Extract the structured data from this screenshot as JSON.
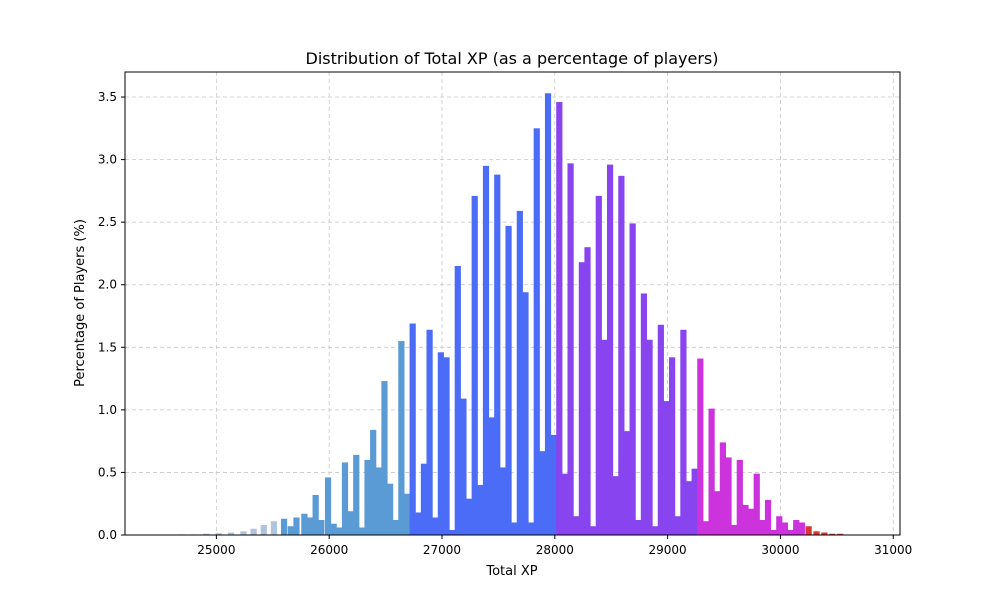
{
  "chart_data": {
    "type": "bar",
    "title": "Distribution of Total XP (as a percentage of players)",
    "xlabel": "Total XP",
    "ylabel": "Percentage of Players (%)",
    "xlim": [
      24190,
      31060
    ],
    "ylim": [
      0,
      3.7
    ],
    "xticks": [
      25000,
      26000,
      27000,
      28000,
      29000,
      30000,
      31000
    ],
    "yticks": [
      0.0,
      0.5,
      1.0,
      1.5,
      2.0,
      2.5,
      3.0,
      3.5
    ],
    "grid": true,
    "bin_width": 55,
    "colors": {
      "lightsteel": "#b0c4de",
      "steelblue": "#5b9bd5",
      "royalblue": "#4a6cf7",
      "violet": "#8844ee",
      "magenta": "#cc33dd",
      "red": "#dd3333"
    },
    "bars": [
      {
        "x": 24690,
        "y": 0.005,
        "color": "#b0c4de"
      },
      {
        "x": 24800,
        "y": 0.005,
        "color": "#b0c4de"
      },
      {
        "x": 24910,
        "y": 0.01,
        "color": "#b0c4de"
      },
      {
        "x": 25020,
        "y": 0.015,
        "color": "#b0c4de"
      },
      {
        "x": 25130,
        "y": 0.02,
        "color": "#b0c4de"
      },
      {
        "x": 25240,
        "y": 0.03,
        "color": "#b0c4de"
      },
      {
        "x": 25330,
        "y": 0.05,
        "color": "#b0c4de"
      },
      {
        "x": 25420,
        "y": 0.08,
        "color": "#b0c4de"
      },
      {
        "x": 25510,
        "y": 0.11,
        "color": "#b0c4de"
      },
      {
        "x": 25600,
        "y": 0.13,
        "color": "#5b9bd5"
      },
      {
        "x": 25660,
        "y": 0.07,
        "color": "#5b9bd5"
      },
      {
        "x": 25710,
        "y": 0.14,
        "color": "#5b9bd5"
      },
      {
        "x": 25780,
        "y": 0.17,
        "color": "#5b9bd5"
      },
      {
        "x": 25830,
        "y": 0.14,
        "color": "#5b9bd5"
      },
      {
        "x": 25880,
        "y": 0.32,
        "color": "#5b9bd5"
      },
      {
        "x": 25930,
        "y": 0.12,
        "color": "#5b9bd5"
      },
      {
        "x": 25990,
        "y": 0.46,
        "color": "#5b9bd5"
      },
      {
        "x": 26040,
        "y": 0.09,
        "color": "#5b9bd5"
      },
      {
        "x": 26090,
        "y": 0.06,
        "color": "#5b9bd5"
      },
      {
        "x": 26140,
        "y": 0.58,
        "color": "#5b9bd5"
      },
      {
        "x": 26190,
        "y": 0.19,
        "color": "#5b9bd5"
      },
      {
        "x": 26240,
        "y": 0.64,
        "color": "#5b9bd5"
      },
      {
        "x": 26290,
        "y": 0.06,
        "color": "#5b9bd5"
      },
      {
        "x": 26340,
        "y": 0.6,
        "color": "#5b9bd5"
      },
      {
        "x": 26390,
        "y": 0.84,
        "color": "#5b9bd5"
      },
      {
        "x": 26440,
        "y": 0.54,
        "color": "#5b9bd5"
      },
      {
        "x": 26490,
        "y": 1.23,
        "color": "#5b9bd5"
      },
      {
        "x": 26540,
        "y": 0.41,
        "color": "#5b9bd5"
      },
      {
        "x": 26590,
        "y": 0.12,
        "color": "#5b9bd5"
      },
      {
        "x": 26640,
        "y": 1.55,
        "color": "#5b9bd5"
      },
      {
        "x": 26690,
        "y": 0.33,
        "color": "#5b9bd5"
      },
      {
        "x": 26740,
        "y": 1.69,
        "color": "#4a6cf7"
      },
      {
        "x": 26790,
        "y": 0.18,
        "color": "#4a6cf7"
      },
      {
        "x": 26840,
        "y": 0.57,
        "color": "#4a6cf7"
      },
      {
        "x": 26890,
        "y": 1.64,
        "color": "#4a6cf7"
      },
      {
        "x": 26940,
        "y": 0.14,
        "color": "#4a6cf7"
      },
      {
        "x": 26990,
        "y": 1.46,
        "color": "#4a6cf7"
      },
      {
        "x": 27040,
        "y": 1.42,
        "color": "#4a6cf7"
      },
      {
        "x": 27090,
        "y": 0.04,
        "color": "#4a6cf7"
      },
      {
        "x": 27140,
        "y": 2.15,
        "color": "#4a6cf7"
      },
      {
        "x": 27190,
        "y": 1.09,
        "color": "#4a6cf7"
      },
      {
        "x": 27240,
        "y": 0.29,
        "color": "#4a6cf7"
      },
      {
        "x": 27290,
        "y": 2.71,
        "color": "#4a6cf7"
      },
      {
        "x": 27340,
        "y": 0.4,
        "color": "#4a6cf7"
      },
      {
        "x": 27390,
        "y": 2.95,
        "color": "#4a6cf7"
      },
      {
        "x": 27440,
        "y": 0.94,
        "color": "#4a6cf7"
      },
      {
        "x": 27490,
        "y": 2.88,
        "color": "#4a6cf7"
      },
      {
        "x": 27540,
        "y": 0.54,
        "color": "#4a6cf7"
      },
      {
        "x": 27590,
        "y": 2.47,
        "color": "#4a6cf7"
      },
      {
        "x": 27640,
        "y": 0.1,
        "color": "#4a6cf7"
      },
      {
        "x": 27690,
        "y": 2.59,
        "color": "#4a6cf7"
      },
      {
        "x": 27740,
        "y": 1.94,
        "color": "#4a6cf7"
      },
      {
        "x": 27790,
        "y": 0.1,
        "color": "#4a6cf7"
      },
      {
        "x": 27840,
        "y": 3.25,
        "color": "#4a6cf7"
      },
      {
        "x": 27890,
        "y": 0.67,
        "color": "#4a6cf7"
      },
      {
        "x": 27940,
        "y": 3.53,
        "color": "#4a6cf7"
      },
      {
        "x": 27990,
        "y": 0.8,
        "color": "#4a6cf7"
      },
      {
        "x": 28040,
        "y": 3.46,
        "color": "#8844ee"
      },
      {
        "x": 28090,
        "y": 0.49,
        "color": "#8844ee"
      },
      {
        "x": 28140,
        "y": 2.97,
        "color": "#8844ee"
      },
      {
        "x": 28190,
        "y": 0.15,
        "color": "#8844ee"
      },
      {
        "x": 28240,
        "y": 2.18,
        "color": "#8844ee"
      },
      {
        "x": 28290,
        "y": 2.3,
        "color": "#8844ee"
      },
      {
        "x": 28340,
        "y": 0.07,
        "color": "#8844ee"
      },
      {
        "x": 28390,
        "y": 2.71,
        "color": "#8844ee"
      },
      {
        "x": 28440,
        "y": 1.56,
        "color": "#8844ee"
      },
      {
        "x": 28490,
        "y": 2.96,
        "color": "#8844ee"
      },
      {
        "x": 28540,
        "y": 0.47,
        "color": "#8844ee"
      },
      {
        "x": 28590,
        "y": 2.87,
        "color": "#8844ee"
      },
      {
        "x": 28640,
        "y": 0.83,
        "color": "#8844ee"
      },
      {
        "x": 28690,
        "y": 2.49,
        "color": "#8844ee"
      },
      {
        "x": 28740,
        "y": 0.12,
        "color": "#8844ee"
      },
      {
        "x": 28790,
        "y": 1.93,
        "color": "#8844ee"
      },
      {
        "x": 28840,
        "y": 1.56,
        "color": "#8844ee"
      },
      {
        "x": 28890,
        "y": 0.07,
        "color": "#8844ee"
      },
      {
        "x": 28940,
        "y": 1.68,
        "color": "#8844ee"
      },
      {
        "x": 28990,
        "y": 1.07,
        "color": "#8844ee"
      },
      {
        "x": 29040,
        "y": 1.42,
        "color": "#8844ee"
      },
      {
        "x": 29090,
        "y": 0.15,
        "color": "#8844ee"
      },
      {
        "x": 29140,
        "y": 1.64,
        "color": "#8844ee"
      },
      {
        "x": 29190,
        "y": 0.43,
        "color": "#8844ee"
      },
      {
        "x": 29240,
        "y": 0.53,
        "color": "#8844ee"
      },
      {
        "x": 29290,
        "y": 1.41,
        "color": "#cc33dd"
      },
      {
        "x": 29340,
        "y": 0.11,
        "color": "#cc33dd"
      },
      {
        "x": 29390,
        "y": 1.01,
        "color": "#cc33dd"
      },
      {
        "x": 29440,
        "y": 0.35,
        "color": "#cc33dd"
      },
      {
        "x": 29490,
        "y": 0.74,
        "color": "#cc33dd"
      },
      {
        "x": 29540,
        "y": 0.62,
        "color": "#cc33dd"
      },
      {
        "x": 29590,
        "y": 0.08,
        "color": "#cc33dd"
      },
      {
        "x": 29640,
        "y": 0.6,
        "color": "#cc33dd"
      },
      {
        "x": 29690,
        "y": 0.24,
        "color": "#cc33dd"
      },
      {
        "x": 29740,
        "y": 0.21,
        "color": "#cc33dd"
      },
      {
        "x": 29790,
        "y": 0.49,
        "color": "#cc33dd"
      },
      {
        "x": 29840,
        "y": 0.12,
        "color": "#cc33dd"
      },
      {
        "x": 29890,
        "y": 0.28,
        "color": "#cc33dd"
      },
      {
        "x": 29940,
        "y": 0.04,
        "color": "#cc33dd"
      },
      {
        "x": 29990,
        "y": 0.15,
        "color": "#cc33dd"
      },
      {
        "x": 30040,
        "y": 0.1,
        "color": "#cc33dd"
      },
      {
        "x": 30090,
        "y": 0.04,
        "color": "#cc33dd"
      },
      {
        "x": 30140,
        "y": 0.12,
        "color": "#cc33dd"
      },
      {
        "x": 30190,
        "y": 0.1,
        "color": "#cc33dd"
      },
      {
        "x": 30250,
        "y": 0.07,
        "color": "#dd3333"
      },
      {
        "x": 30320,
        "y": 0.03,
        "color": "#dd3333"
      },
      {
        "x": 30390,
        "y": 0.02,
        "color": "#dd3333"
      },
      {
        "x": 30460,
        "y": 0.01,
        "color": "#dd3333"
      },
      {
        "x": 30530,
        "y": 0.01,
        "color": "#dd3333"
      }
    ]
  }
}
